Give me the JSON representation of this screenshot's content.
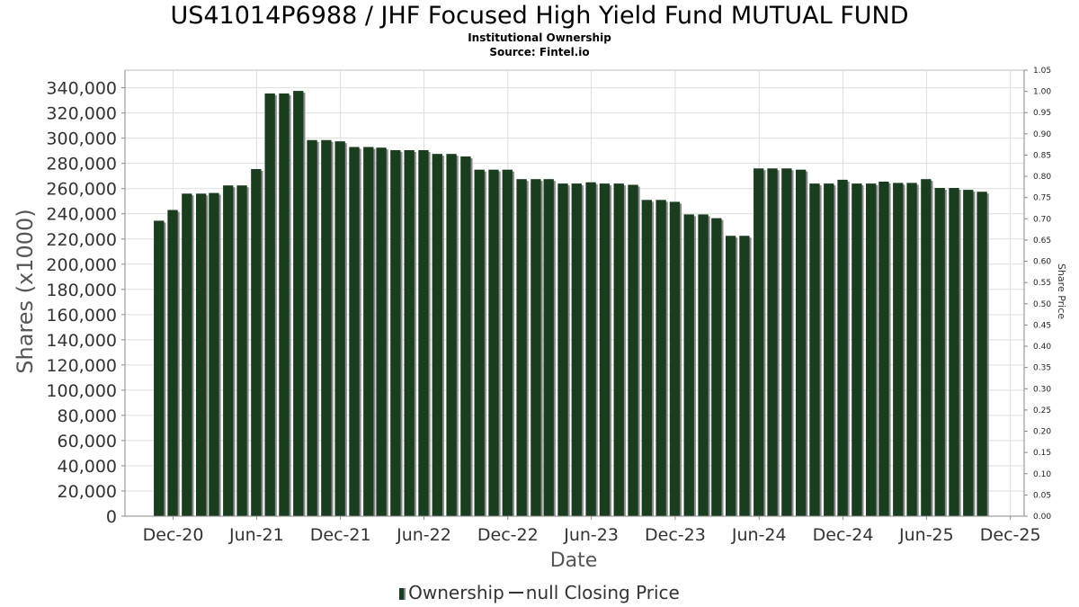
{
  "header": {
    "title": "US41014P6988 / JHF Focused High Yield Fund MUTUAL FUND",
    "subtitle1": "Institutional Ownership",
    "subtitle2": "Source: Fintel.io"
  },
  "legend": {
    "ownership_label": "Ownership",
    "price_label": "null Closing Price"
  },
  "colors": {
    "bar": "#1a3d1f",
    "bar_shadow": "#8a8a8a",
    "grid": "#dddddd",
    "axis": "#888888"
  },
  "chart_data": {
    "type": "bar",
    "title": "US41014P6988 / JHF Focused High Yield Fund MUTUAL FUND",
    "xlabel": "Date",
    "ylabel": "Shares (x1000)",
    "y2label": "Share Price",
    "ylim": [
      0,
      354000
    ],
    "y2lim": [
      0,
      1.05
    ],
    "yticks": [
      0,
      20000,
      40000,
      60000,
      80000,
      100000,
      120000,
      140000,
      160000,
      180000,
      200000,
      220000,
      240000,
      260000,
      280000,
      300000,
      320000,
      340000
    ],
    "y2ticks": [
      0.0,
      0.05,
      0.1,
      0.15,
      0.2,
      0.25,
      0.3,
      0.35,
      0.4,
      0.45,
      0.5,
      0.55,
      0.6,
      0.65,
      0.7,
      0.75,
      0.8,
      0.85,
      0.9,
      0.95,
      1.0,
      1.05
    ],
    "xlim": [
      "2020-08-18",
      "2025-12-31"
    ],
    "xticks": [
      {
        "label": "Dec-20",
        "date": "2020-12-01"
      },
      {
        "label": "Jun-21",
        "date": "2021-06-01"
      },
      {
        "label": "Dec-21",
        "date": "2021-12-01"
      },
      {
        "label": "Jun-22",
        "date": "2022-06-01"
      },
      {
        "label": "Dec-22",
        "date": "2022-12-01"
      },
      {
        "label": "Jun-23",
        "date": "2023-06-01"
      },
      {
        "label": "Dec-23",
        "date": "2023-12-01"
      },
      {
        "label": "Jun-24",
        "date": "2024-06-01"
      },
      {
        "label": "Dec-24",
        "date": "2024-12-01"
      },
      {
        "label": "Jun-25",
        "date": "2025-06-01"
      },
      {
        "label": "Dec-25",
        "date": "2025-12-01"
      }
    ],
    "grid": true,
    "legend_position": "bottom",
    "series": [
      {
        "name": "Ownership",
        "points": [
          {
            "x": "2020-10-31",
            "y": 234500
          },
          {
            "x": "2020-11-30",
            "y": 243000
          },
          {
            "x": "2020-12-31",
            "y": 256000
          },
          {
            "x": "2021-01-31",
            "y": 256000
          },
          {
            "x": "2021-02-28",
            "y": 256500
          },
          {
            "x": "2021-03-31",
            "y": 262500
          },
          {
            "x": "2021-04-30",
            "y": 262500
          },
          {
            "x": "2021-05-31",
            "y": 275500
          },
          {
            "x": "2021-06-30",
            "y": 335500
          },
          {
            "x": "2021-07-31",
            "y": 335500
          },
          {
            "x": "2021-08-31",
            "y": 337500
          },
          {
            "x": "2021-09-30",
            "y": 298500
          },
          {
            "x": "2021-10-31",
            "y": 298500
          },
          {
            "x": "2021-11-30",
            "y": 297500
          },
          {
            "x": "2021-12-31",
            "y": 293000
          },
          {
            "x": "2022-01-31",
            "y": 293000
          },
          {
            "x": "2022-02-28",
            "y": 292500
          },
          {
            "x": "2022-03-31",
            "y": 290500
          },
          {
            "x": "2022-04-30",
            "y": 290500
          },
          {
            "x": "2022-05-31",
            "y": 290500
          },
          {
            "x": "2022-06-30",
            "y": 287500
          },
          {
            "x": "2022-07-31",
            "y": 287500
          },
          {
            "x": "2022-08-31",
            "y": 285500
          },
          {
            "x": "2022-09-30",
            "y": 275000
          },
          {
            "x": "2022-10-31",
            "y": 275000
          },
          {
            "x": "2022-11-30",
            "y": 275000
          },
          {
            "x": "2022-12-31",
            "y": 267500
          },
          {
            "x": "2023-01-31",
            "y": 267500
          },
          {
            "x": "2023-02-28",
            "y": 267500
          },
          {
            "x": "2023-03-31",
            "y": 264000
          },
          {
            "x": "2023-04-30",
            "y": 264000
          },
          {
            "x": "2023-05-31",
            "y": 265000
          },
          {
            "x": "2023-06-30",
            "y": 264000
          },
          {
            "x": "2023-07-31",
            "y": 264000
          },
          {
            "x": "2023-08-31",
            "y": 263000
          },
          {
            "x": "2023-09-30",
            "y": 251000
          },
          {
            "x": "2023-10-31",
            "y": 251000
          },
          {
            "x": "2023-11-30",
            "y": 249500
          },
          {
            "x": "2023-12-31",
            "y": 239500
          },
          {
            "x": "2024-01-31",
            "y": 239500
          },
          {
            "x": "2024-02-29",
            "y": 236500
          },
          {
            "x": "2024-03-31",
            "y": 222500
          },
          {
            "x": "2024-04-30",
            "y": 222500
          },
          {
            "x": "2024-05-31",
            "y": 276000
          },
          {
            "x": "2024-06-30",
            "y": 276000
          },
          {
            "x": "2024-07-31",
            "y": 276000
          },
          {
            "x": "2024-08-31",
            "y": 275000
          },
          {
            "x": "2024-09-30",
            "y": 264000
          },
          {
            "x": "2024-10-31",
            "y": 264000
          },
          {
            "x": "2024-11-30",
            "y": 267000
          },
          {
            "x": "2024-12-31",
            "y": 264000
          },
          {
            "x": "2025-01-31",
            "y": 264000
          },
          {
            "x": "2025-02-28",
            "y": 265500
          },
          {
            "x": "2025-03-31",
            "y": 264500
          },
          {
            "x": "2025-04-30",
            "y": 264500
          },
          {
            "x": "2025-05-31",
            "y": 267500
          },
          {
            "x": "2025-06-30",
            "y": 260500
          },
          {
            "x": "2025-07-31",
            "y": 260500
          },
          {
            "x": "2025-08-31",
            "y": 259000
          },
          {
            "x": "2025-09-30",
            "y": 257500
          }
        ]
      },
      {
        "name": "null Closing Price",
        "points": []
      }
    ]
  }
}
